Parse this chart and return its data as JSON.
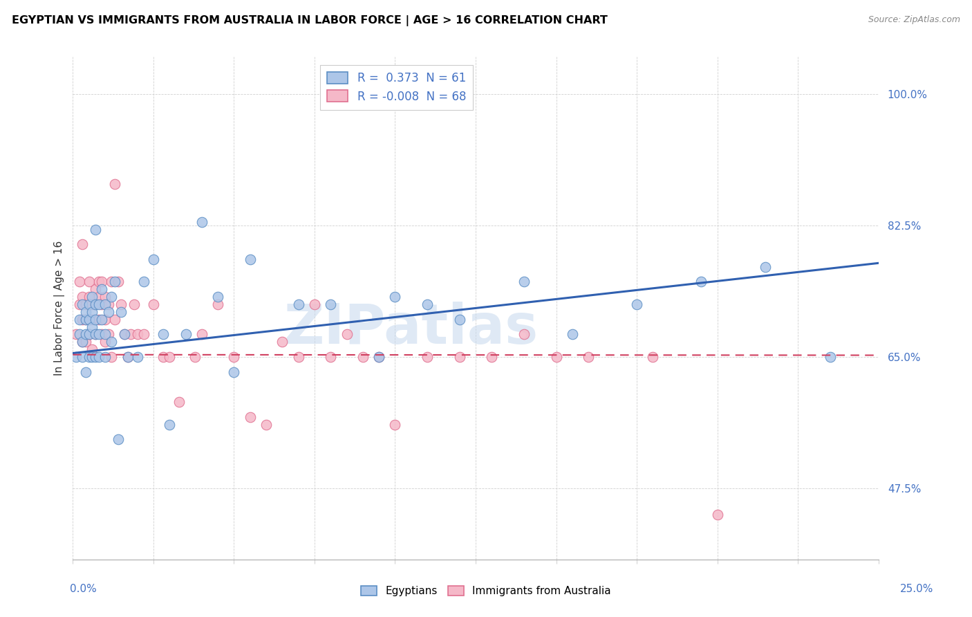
{
  "title": "EGYPTIAN VS IMMIGRANTS FROM AUSTRALIA IN LABOR FORCE | AGE > 16 CORRELATION CHART",
  "source": "Source: ZipAtlas.com",
  "ylabel": "In Labor Force | Age > 16",
  "ytick_vals": [
    0.475,
    0.65,
    0.825,
    1.0
  ],
  "xlim": [
    0.0,
    0.25
  ],
  "ylim": [
    0.38,
    1.05
  ],
  "blue_R": "0.373",
  "blue_N": "61",
  "pink_R": "-0.008",
  "pink_N": "68",
  "legend_label_blue": "Egyptians",
  "legend_label_pink": "Immigrants from Australia",
  "blue_face_color": "#adc6e8",
  "pink_face_color": "#f5b8c8",
  "blue_edge_color": "#5b8ec4",
  "pink_edge_color": "#e07090",
  "blue_line_color": "#3060b0",
  "pink_line_color": "#d04060",
  "axis_color": "#4472c4",
  "watermark": "ZIPatlas",
  "blue_scatter_x": [
    0.001,
    0.002,
    0.002,
    0.003,
    0.003,
    0.003,
    0.004,
    0.004,
    0.004,
    0.004,
    0.005,
    0.005,
    0.005,
    0.005,
    0.006,
    0.006,
    0.006,
    0.006,
    0.007,
    0.007,
    0.007,
    0.007,
    0.007,
    0.008,
    0.008,
    0.008,
    0.009,
    0.009,
    0.01,
    0.01,
    0.01,
    0.011,
    0.012,
    0.012,
    0.013,
    0.014,
    0.015,
    0.016,
    0.017,
    0.02,
    0.022,
    0.025,
    0.028,
    0.03,
    0.035,
    0.04,
    0.045,
    0.05,
    0.055,
    0.07,
    0.08,
    0.095,
    0.1,
    0.11,
    0.12,
    0.14,
    0.155,
    0.175,
    0.195,
    0.215,
    0.235
  ],
  "blue_scatter_y": [
    0.65,
    0.68,
    0.7,
    0.72,
    0.65,
    0.67,
    0.68,
    0.7,
    0.63,
    0.71,
    0.72,
    0.68,
    0.65,
    0.7,
    0.71,
    0.69,
    0.65,
    0.73,
    0.72,
    0.68,
    0.65,
    0.7,
    0.82,
    0.72,
    0.68,
    0.65,
    0.74,
    0.7,
    0.72,
    0.68,
    0.65,
    0.71,
    0.73,
    0.67,
    0.75,
    0.54,
    0.71,
    0.68,
    0.65,
    0.65,
    0.75,
    0.78,
    0.68,
    0.56,
    0.68,
    0.83,
    0.73,
    0.63,
    0.78,
    0.72,
    0.72,
    0.65,
    0.73,
    0.72,
    0.7,
    0.75,
    0.68,
    0.72,
    0.75,
    0.77,
    0.65
  ],
  "pink_scatter_x": [
    0.001,
    0.002,
    0.002,
    0.003,
    0.003,
    0.003,
    0.003,
    0.004,
    0.004,
    0.004,
    0.005,
    0.005,
    0.005,
    0.006,
    0.006,
    0.006,
    0.007,
    0.007,
    0.007,
    0.008,
    0.008,
    0.008,
    0.009,
    0.009,
    0.009,
    0.01,
    0.01,
    0.01,
    0.011,
    0.011,
    0.012,
    0.012,
    0.013,
    0.013,
    0.014,
    0.015,
    0.016,
    0.017,
    0.018,
    0.019,
    0.02,
    0.022,
    0.025,
    0.028,
    0.03,
    0.033,
    0.038,
    0.04,
    0.045,
    0.05,
    0.055,
    0.06,
    0.065,
    0.07,
    0.075,
    0.08,
    0.085,
    0.09,
    0.095,
    0.1,
    0.11,
    0.12,
    0.13,
    0.14,
    0.15,
    0.16,
    0.18,
    0.2
  ],
  "pink_scatter_y": [
    0.68,
    0.75,
    0.72,
    0.7,
    0.73,
    0.67,
    0.8,
    0.72,
    0.7,
    0.67,
    0.75,
    0.73,
    0.68,
    0.72,
    0.7,
    0.66,
    0.74,
    0.72,
    0.68,
    0.73,
    0.7,
    0.75,
    0.75,
    0.72,
    0.68,
    0.73,
    0.7,
    0.67,
    0.72,
    0.68,
    0.65,
    0.75,
    0.7,
    0.88,
    0.75,
    0.72,
    0.68,
    0.65,
    0.68,
    0.72,
    0.68,
    0.68,
    0.72,
    0.65,
    0.65,
    0.59,
    0.65,
    0.68,
    0.72,
    0.65,
    0.57,
    0.56,
    0.67,
    0.65,
    0.72,
    0.65,
    0.68,
    0.65,
    0.65,
    0.56,
    0.65,
    0.65,
    0.65,
    0.68,
    0.65,
    0.65,
    0.65,
    0.44
  ]
}
